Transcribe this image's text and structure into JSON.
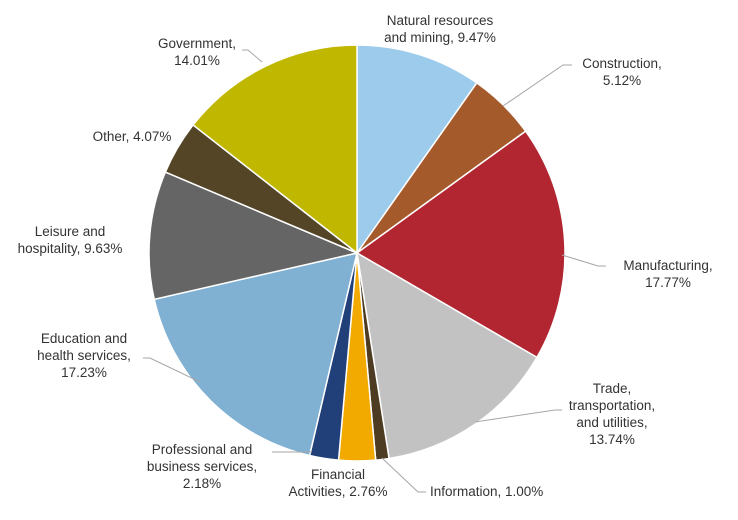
{
  "chart_data": {
    "type": "pie",
    "title": "",
    "slices": [
      {
        "label": [
          "Natural resources",
          "and mining, 9.47%"
        ],
        "value": 9.47,
        "color": "#9dcbeb"
      },
      {
        "label": [
          "Construction,",
          "5.12%"
        ],
        "value": 5.12,
        "color": "#a55a2b"
      },
      {
        "label": [
          "Manufacturing,",
          "17.77%"
        ],
        "value": 17.77,
        "color": "#b12631"
      },
      {
        "label": [
          "Trade,",
          "transportation,",
          "and utilities,",
          "13.74%"
        ],
        "value": 13.74,
        "color": "#c2c2c2"
      },
      {
        "label": [
          "Information, 1.00%"
        ],
        "value": 1.0,
        "color": "#4e3c22"
      },
      {
        "label": [
          "Financial",
          "Activities, 2.76%"
        ],
        "value": 2.76,
        "color": "#f2a900"
      },
      {
        "label": [
          "Professional and",
          "business services,",
          "2.18%"
        ],
        "value": 2.18,
        "color": "#213f79"
      },
      {
        "label": [
          "Education and",
          "health services,",
          "17.23%"
        ],
        "value": 17.23,
        "color": "#80b0d2"
      },
      {
        "label": [
          "Leisure and",
          "hospitality, 9.63%"
        ],
        "value": 9.63,
        "color": "#656565"
      },
      {
        "label": [
          "Other, 4.07%"
        ],
        "value": 4.07,
        "color": "#544527"
      },
      {
        "label": [
          "Government,",
          "14.01%"
        ],
        "value": 14.01,
        "color": "#c0b800"
      }
    ]
  }
}
